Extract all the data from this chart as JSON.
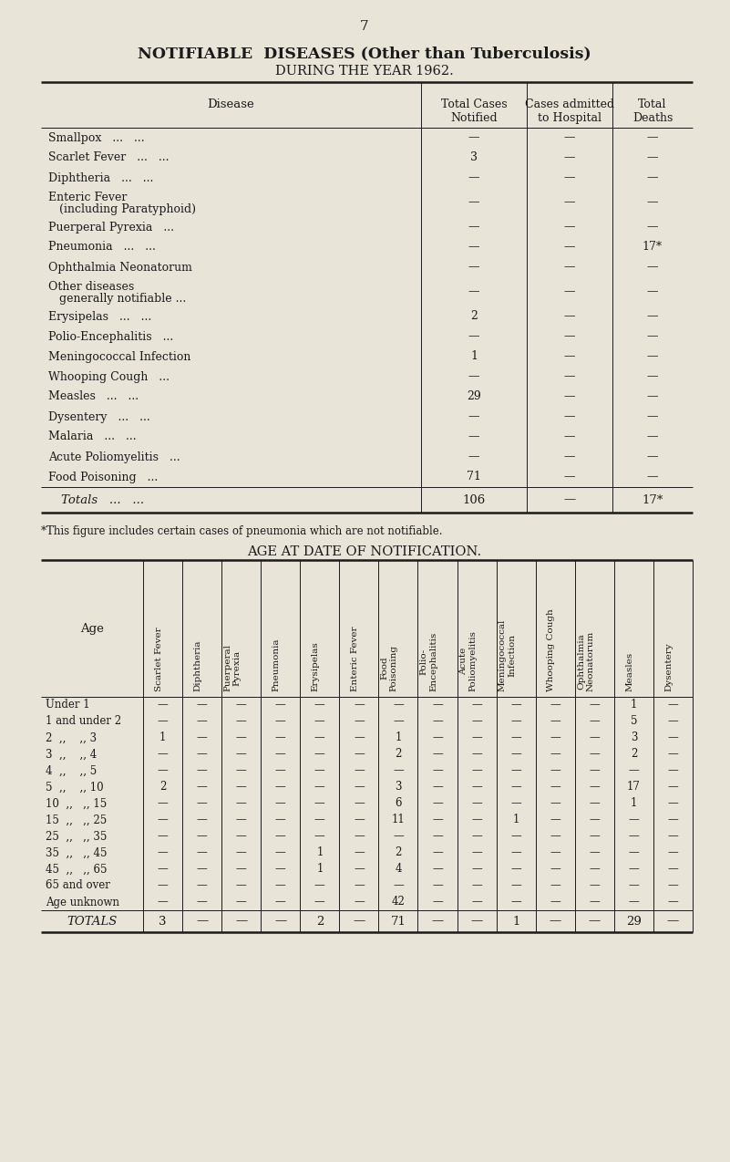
{
  "page_number": "7",
  "title_bold": "NOTIFIABLE  DISEASES (Other than Tuberculosis)",
  "title_subtitle": "DURING THE YEAR 1962.",
  "background_color": "#e8e4d8",
  "text_color": "#1a1a1a",
  "footnote": "*This figure includes certain cases of pneumonia which are not notifiable.",
  "table1": {
    "rows": [
      [
        "Smallpox   ...   ...",
        "—",
        "—",
        "—",
        false
      ],
      [
        "Scarlet Fever   ...   ...",
        "3",
        "—",
        "—",
        false
      ],
      [
        "Diphtheria   ...   ...",
        "—",
        "—",
        "—",
        false
      ],
      [
        "Enteric Fever",
        "—",
        "—",
        "—",
        "   (including Paratyphoid)"
      ],
      [
        "Puerperal Pyrexia   ...",
        "—",
        "—",
        "—",
        false
      ],
      [
        "Pneumonia   ...   ...",
        "—",
        "—",
        "17*",
        false
      ],
      [
        "Ophthalmia Neonatorum",
        "—",
        "—",
        "—",
        false
      ],
      [
        "Other diseases",
        "—",
        "—",
        "—",
        "   generally notifiable ..."
      ],
      [
        "Erysipelas   ...   ...",
        "2",
        "—",
        "—",
        false
      ],
      [
        "Polio-Encephalitis   ...",
        "—",
        "—",
        "—",
        false
      ],
      [
        "Meningococcal Infection",
        "1",
        "—",
        "—",
        false
      ],
      [
        "Whooping Cough   ...",
        "—",
        "—",
        "—",
        false
      ],
      [
        "Measles   ...   ...",
        "29",
        "—",
        "—",
        false
      ],
      [
        "Dysentery   ...   ...",
        "—",
        "—",
        "—",
        false
      ],
      [
        "Malaria   ...   ...",
        "—",
        "—",
        "—",
        false
      ],
      [
        "Acute Poliomyelitis   ...",
        "—",
        "—",
        "—",
        false
      ],
      [
        "Food Poisoning   ...",
        "71",
        "—",
        "—",
        false
      ]
    ],
    "totals_label": "Totals   ...   ...",
    "totals_vals": [
      "106",
      "—",
      "17*"
    ]
  },
  "table2": {
    "col_headers": [
      "Scarlet Fever",
      "Diphtheria",
      "Puerperal\nPyrexia",
      "Pneumonia",
      "Erysipelas",
      "Enteric Fever",
      "Food\nPoisoning",
      "Polio-\nEncephalitis",
      "Acute\nPoliomyelitis",
      "Meningococcal\nInfection",
      "Whooping Cough",
      "Ophthalmia\nNeonatorum",
      "Measles",
      "Dysentery"
    ],
    "age_groups": [
      "Under 1",
      "1 and under 2",
      "2  ,,    ,, 3",
      "3  ,,    ,, 4",
      "4  ,,    ,, 5",
      "5  ,,    ,, 10",
      "10  ,,   ,, 15",
      "15  ,,   ,, 25",
      "25  ,,   ,, 35",
      "35  ,,   ,, 45",
      "45  ,,   ,, 65",
      "65 and over",
      "Age unknown"
    ],
    "data": [
      [
        "—",
        "—",
        "—",
        "—",
        "—",
        "—",
        "—",
        "—",
        "—",
        "—",
        "—",
        "—",
        "1",
        "—"
      ],
      [
        "—",
        "—",
        "—",
        "—",
        "—",
        "—",
        "—",
        "—",
        "—",
        "—",
        "—",
        "—",
        "5",
        "—"
      ],
      [
        "1",
        "—",
        "—",
        "—",
        "—",
        "—",
        "1",
        "—",
        "—",
        "—",
        "—",
        "—",
        "3",
        "—"
      ],
      [
        "—",
        "—",
        "—",
        "—",
        "—",
        "—",
        "2",
        "—",
        "—",
        "—",
        "—",
        "—",
        "2",
        "—"
      ],
      [
        "—",
        "—",
        "—",
        "—",
        "—",
        "—",
        "—",
        "—",
        "—",
        "—",
        "—",
        "—",
        "—",
        "—"
      ],
      [
        "2",
        "—",
        "—",
        "—",
        "—",
        "—",
        "3",
        "—",
        "—",
        "—",
        "—",
        "—",
        "17",
        "—"
      ],
      [
        "—",
        "—",
        "—",
        "—",
        "—",
        "—",
        "6",
        "—",
        "—",
        "—",
        "—",
        "—",
        "1",
        "—"
      ],
      [
        "—",
        "—",
        "—",
        "—",
        "—",
        "—",
        "11",
        "—",
        "—",
        "1",
        "—",
        "—",
        "—",
        "—"
      ],
      [
        "—",
        "—",
        "—",
        "—",
        "—",
        "—",
        "—",
        "—",
        "—",
        "—",
        "—",
        "—",
        "—",
        "—"
      ],
      [
        "—",
        "—",
        "—",
        "—",
        "1",
        "—",
        "2",
        "—",
        "—",
        "—",
        "—",
        "—",
        "—",
        "—"
      ],
      [
        "—",
        "—",
        "—",
        "—",
        "1",
        "—",
        "4",
        "—",
        "—",
        "—",
        "—",
        "—",
        "—",
        "—"
      ],
      [
        "—",
        "—",
        "—",
        "—",
        "—",
        "—",
        "—",
        "—",
        "—",
        "—",
        "—",
        "—",
        "—",
        "—"
      ],
      [
        "—",
        "—",
        "—",
        "—",
        "—",
        "—",
        "42",
        "—",
        "—",
        "—",
        "—",
        "—",
        "—",
        "—"
      ]
    ],
    "totals": [
      "3",
      "—",
      "—",
      "—",
      "2",
      "—",
      "71",
      "—",
      "—",
      "1",
      "—",
      "—",
      "29",
      "—"
    ]
  }
}
